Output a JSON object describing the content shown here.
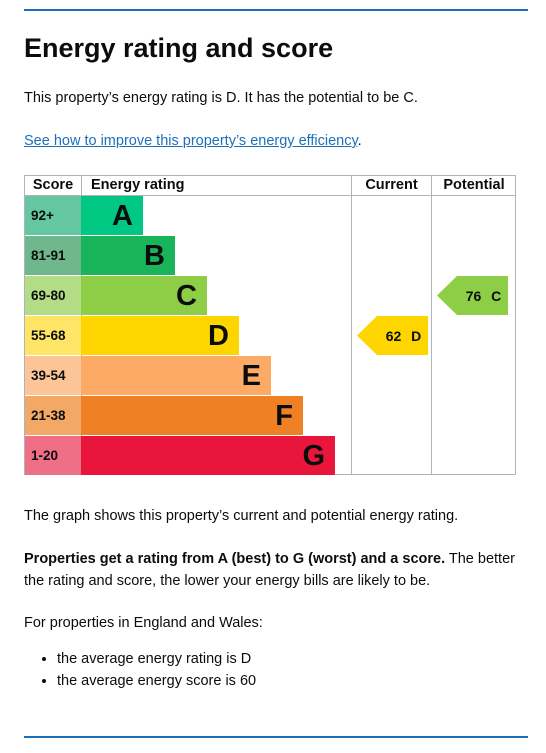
{
  "heading": "Energy rating and score",
  "intro": "This property’s energy rating is D. It has the potential to be C.",
  "link": {
    "text": "See how to improve this property’s energy efficiency",
    "trailing": "."
  },
  "chart_headers": {
    "score": "Score",
    "energy_rating": "Energy rating",
    "current": "Current",
    "potential": "Potential"
  },
  "bands": [
    {
      "score": "92+",
      "letter": "A",
      "color": "#00c781",
      "score_color": "#64c7a2"
    },
    {
      "score": "81-91",
      "letter": "B",
      "color": "#19b459",
      "score_color": "#6fb78d"
    },
    {
      "score": "69-80",
      "letter": "C",
      "color": "#8dce46",
      "score_color": "#b3dc87"
    },
    {
      "score": "55-68",
      "letter": "D",
      "color": "#ffd500",
      "score_color": "#ffe566"
    },
    {
      "score": "39-54",
      "letter": "E",
      "color": "#fcaa65",
      "score_color": "#fdc597"
    },
    {
      "score": "21-38",
      "letter": "F",
      "color": "#ef8023",
      "score_color": "#f4a866"
    },
    {
      "score": "1-20",
      "letter": "G",
      "color": "#e9153b",
      "score_color": "#ef6f86"
    }
  ],
  "current": {
    "score": "62",
    "letter": "D",
    "color": "#ffd500",
    "band_index": 3
  },
  "potential": {
    "score": "76",
    "letter": "C",
    "color": "#8dce46",
    "band_index": 2
  },
  "graph_note": "The graph shows this property’s current and potential energy rating.",
  "ratings_note": {
    "bold": "Properties get a rating from A (best) to G (worst) and a score.",
    "rest": " The better the rating and score, the lower your energy bills are likely to be."
  },
  "region_note": "For properties in England and Wales:",
  "averages": [
    "the average energy rating is D",
    "the average energy score is 60"
  ]
}
